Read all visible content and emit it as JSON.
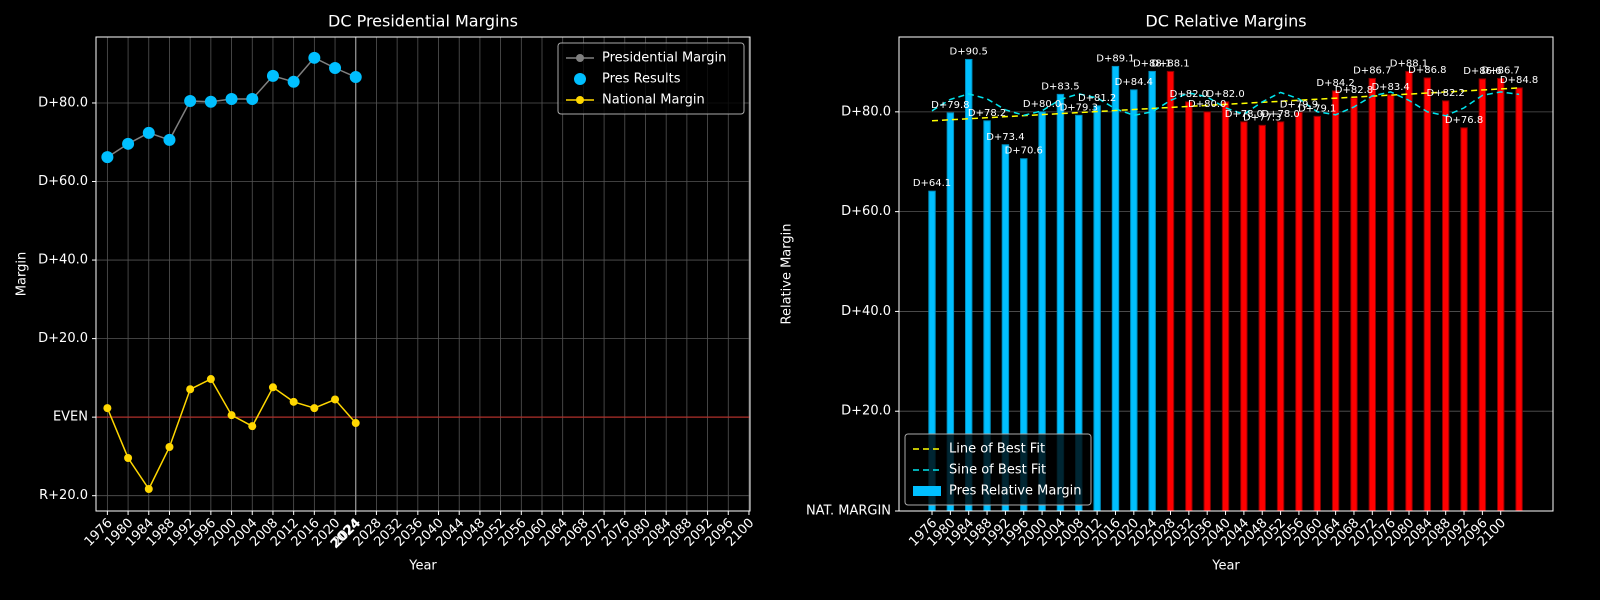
{
  "chart_data": [
    {
      "type": "line",
      "title": "DC Presidential Margins",
      "x_label": "Year",
      "y_label": "Margin",
      "x": [
        1976,
        1980,
        1984,
        1988,
        1992,
        1996,
        2000,
        2004,
        2008,
        2012,
        2016,
        2020,
        2024
      ],
      "series": [
        {
          "name": "Presidential Margin",
          "color": "#808080",
          "style": "line-markers",
          "values": [
            66.2,
            69.6,
            72.4,
            70.6,
            80.5,
            80.3,
            81.0,
            81.0,
            86.9,
            85.4,
            91.5,
            88.9,
            86.6
          ]
        },
        {
          "name": "Pres Results",
          "color": "#00bfff",
          "style": "markers",
          "values": [
            66.2,
            69.6,
            72.4,
            70.6,
            80.5,
            80.3,
            81.0,
            81.0,
            86.9,
            85.4,
            91.5,
            88.9,
            86.6
          ]
        },
        {
          "name": "National Margin",
          "color": "#ffd700",
          "style": "line-markers",
          "values": [
            2.3,
            -10.4,
            -18.3,
            -7.6,
            7.1,
            9.7,
            0.5,
            -2.3,
            7.6,
            3.9,
            2.3,
            4.5,
            -1.5
          ]
        }
      ],
      "xlim": [
        1973.8,
        2100.2
      ],
      "ylim": [
        -23.9,
        96.8
      ],
      "xticks": [
        1976,
        1980,
        1984,
        1988,
        1992,
        1996,
        2000,
        2004,
        2008,
        2012,
        2016,
        2020,
        2024,
        2028,
        2032,
        2036,
        2040,
        2044,
        2048,
        2052,
        2056,
        2060,
        2064,
        2068,
        2072,
        2076,
        2080,
        2084,
        2088,
        2092,
        2096,
        2100
      ],
      "yticks": [
        {
          "value": -20,
          "label": "R+20.0"
        },
        {
          "value": 0,
          "label": "EVEN"
        },
        {
          "value": 20,
          "label": "D+20.0"
        },
        {
          "value": 40,
          "label": "D+40.0"
        },
        {
          "value": 60,
          "label": "D+60.0"
        },
        {
          "value": 80,
          "label": "D+80.0"
        }
      ],
      "reference_line": {
        "y": 0,
        "color": "#b0302a"
      },
      "vline": {
        "x": 2024,
        "label": "2024"
      },
      "grid": "both",
      "legend": "upper right"
    },
    {
      "type": "bar",
      "title": "DC Relative Margins",
      "x_label": "Year",
      "y_label": "Relative Margin",
      "series": [
        {
          "name": "Line of Best Fit",
          "kind": "line",
          "color": "#ffff00",
          "dashed": true,
          "x": [
            1976,
            2104
          ],
          "values": [
            78.2,
            84.8
          ]
        },
        {
          "name": "Sine of Best Fit",
          "kind": "line",
          "color": "#00e5ee",
          "dashed": true,
          "x": [
            1976,
            1980,
            1984,
            1988,
            1992,
            1996,
            2000,
            2004,
            2008,
            2012,
            2016,
            2020,
            2024,
            2028,
            2032,
            2036,
            2040,
            2044,
            2048,
            2052,
            2056,
            2060,
            2064,
            2068,
            2072,
            2076,
            2080,
            2084,
            2088,
            2092,
            2096,
            2100,
            2104
          ],
          "values": [
            80.2,
            82.5,
            83.6,
            82.6,
            80.4,
            79.3,
            80.2,
            82.5,
            83.6,
            82.8,
            80.6,
            79.3,
            80.0,
            82.3,
            83.8,
            83.0,
            80.8,
            79.5,
            82.0,
            83.9,
            82.6,
            80.0,
            79.4,
            81.0,
            83.2,
            84.0,
            82.3,
            80.0,
            79.2,
            80.8,
            83.3,
            84.0,
            83.5
          ]
        },
        {
          "name": "Pres Relative Margin",
          "kind": "bar",
          "color": "#00bfff",
          "edge": "#0090c0",
          "x": [
            1976,
            1980,
            1984,
            1988,
            1992,
            1996,
            2000,
            2004,
            2008,
            2012,
            2016,
            2020,
            2024
          ],
          "values": [
            64.1,
            79.8,
            90.5,
            78.2,
            73.4,
            70.6,
            80.0,
            83.5,
            79.3,
            81.2,
            89.1,
            84.4,
            88.1
          ],
          "value_labels": [
            "D+64.1",
            "D+79.8",
            "D+90.5",
            "D+78.2",
            "D+73.4",
            "D+70.6",
            "D+80.0",
            "D+83.5",
            "D+79.3",
            "D+81.2",
            "D+89.1",
            "D+84.4",
            "D+88.1"
          ]
        },
        {
          "kind": "bar",
          "color": "#ff0000",
          "edge": "#8b0000",
          "x": [
            2028,
            2032,
            2036,
            2040,
            2044,
            2048,
            2052,
            2056,
            2060,
            2064,
            2068,
            2072,
            2076,
            2080,
            2084,
            2088,
            2092,
            2096,
            2100,
            2104
          ],
          "values": [
            88.1,
            82.0,
            80.0,
            82.0,
            78.0,
            77.3,
            78.0,
            79.9,
            79.1,
            84.2,
            82.8,
            86.7,
            83.4,
            88.1,
            86.8,
            82.2,
            76.8,
            86.6,
            86.7,
            84.8
          ],
          "value_labels": [
            "D+88.1",
            "D+82.0",
            "D+80.0",
            "D+82.0",
            "D+78.0",
            "D+77.3",
            "D+78.0",
            "D+79.9",
            "D+79.1",
            "D+84.2",
            "D+82.8",
            "D+86.7",
            "D+83.4",
            "D+88.1",
            "D+86.8",
            "D+82.2",
            "D+76.8",
            "D+86.6",
            "D+86.7",
            "D+84.8"
          ]
        }
      ],
      "xlim": [
        1968.8,
        2111.4
      ],
      "ylim": [
        0,
        95
      ],
      "xticks": [
        1976,
        1980,
        1984,
        1988,
        1992,
        1996,
        2000,
        2004,
        2008,
        2012,
        2016,
        2020,
        2024,
        2028,
        2032,
        2036,
        2040,
        2044,
        2048,
        2052,
        2056,
        2060,
        2064,
        2068,
        2072,
        2076,
        2080,
        2084,
        2088,
        2092,
        2096,
        2100
      ],
      "yticks": [
        {
          "value": 0,
          "label": "NAT. MARGIN"
        },
        {
          "value": 20,
          "label": "D+20.0"
        },
        {
          "value": 40,
          "label": "D+40.0"
        },
        {
          "value": 60,
          "label": "D+60.0"
        },
        {
          "value": 80,
          "label": "D+80.0"
        }
      ],
      "grid": "y",
      "legend": "lower left"
    }
  ]
}
